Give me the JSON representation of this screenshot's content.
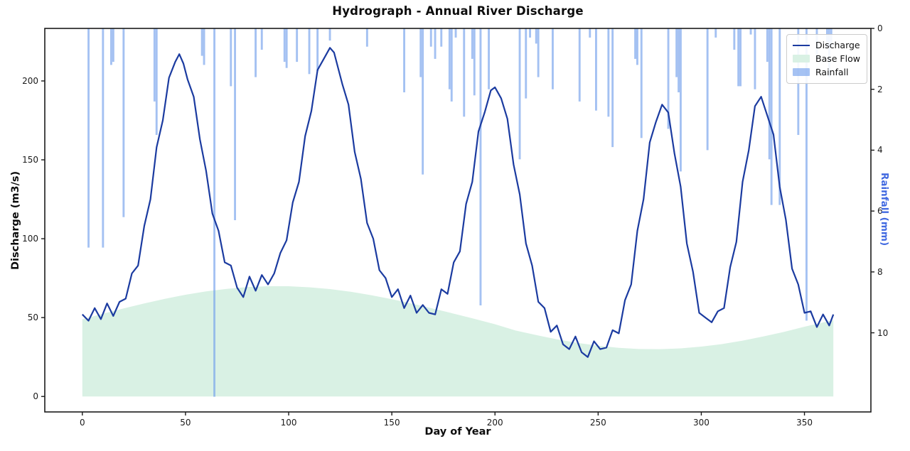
{
  "figure": {
    "title": "Hydrograph - Annual River Discharge"
  },
  "axes": {
    "x": {
      "label": "Day of Year",
      "ticks": [
        0,
        50,
        100,
        150,
        200,
        250,
        300,
        350
      ]
    },
    "y_left": {
      "label": "Discharge (m3/s)",
      "ticks": [
        0,
        50,
        100,
        150,
        200
      ]
    },
    "y_right": {
      "label": "Rainfall (mm)",
      "ticks": [
        0,
        2,
        4,
        6,
        8,
        10
      ],
      "label_color": "#4169e1"
    }
  },
  "legend": {
    "position": "upper-right"
  },
  "colors": {
    "discharge_line": "#1b3ba0",
    "baseflow_fill": "#d9f1e4",
    "rainfall_bar": "#6d9ceb",
    "rainfall_bar_opacity": 0.62,
    "spine": "#1a1a1a",
    "tick_text": "#1a1a1a"
  },
  "chart_data": {
    "type": "line",
    "title": "Hydrograph - Annual River Discharge",
    "xlabel": "Day of Year",
    "ylabel_left": "Discharge (m3/s)",
    "ylabel_right": "Rainfall (mm)",
    "xlim": [
      -18.2,
      382.2
    ],
    "ylim_discharge": [
      -9.8,
      233.3
    ],
    "ylim_rainfall": [
      12.6,
      0
    ],
    "rainfall_axis_inverted": true,
    "grid": false,
    "legend_position": "upper-right",
    "series": [
      {
        "name": "Discharge",
        "type": "line",
        "axis": "left",
        "color": "#1b3ba0",
        "points": [
          [
            0,
            52
          ],
          [
            3,
            48
          ],
          [
            6,
            56
          ],
          [
            9,
            49
          ],
          [
            12,
            59
          ],
          [
            15,
            51
          ],
          [
            18,
            60
          ],
          [
            21,
            62
          ],
          [
            24,
            78
          ],
          [
            27,
            83
          ],
          [
            30,
            108
          ],
          [
            33,
            125
          ],
          [
            36,
            158
          ],
          [
            39,
            175
          ],
          [
            42,
            202
          ],
          [
            45,
            212
          ],
          [
            47,
            217
          ],
          [
            49,
            211
          ],
          [
            51,
            201
          ],
          [
            54,
            190
          ],
          [
            57,
            163
          ],
          [
            60,
            143
          ],
          [
            63,
            116
          ],
          [
            66,
            105
          ],
          [
            69,
            85
          ],
          [
            72,
            83
          ],
          [
            75,
            69
          ],
          [
            78,
            63
          ],
          [
            81,
            76
          ],
          [
            84,
            67
          ],
          [
            87,
            77
          ],
          [
            90,
            71
          ],
          [
            93,
            78
          ],
          [
            96,
            91
          ],
          [
            99,
            99
          ],
          [
            102,
            123
          ],
          [
            105,
            136
          ],
          [
            108,
            165
          ],
          [
            111,
            181
          ],
          [
            114,
            207
          ],
          [
            117,
            214
          ],
          [
            120,
            221
          ],
          [
            122,
            218
          ],
          [
            126,
            198
          ],
          [
            129,
            185
          ],
          [
            132,
            155
          ],
          [
            135,
            138
          ],
          [
            138,
            110
          ],
          [
            141,
            100
          ],
          [
            144,
            80
          ],
          [
            147,
            75
          ],
          [
            150,
            63
          ],
          [
            153,
            68
          ],
          [
            156,
            56
          ],
          [
            159,
            64
          ],
          [
            162,
            53
          ],
          [
            165,
            58
          ],
          [
            168,
            53
          ],
          [
            171,
            52
          ],
          [
            174,
            68
          ],
          [
            177,
            65
          ],
          [
            180,
            85
          ],
          [
            183,
            92
          ],
          [
            186,
            122
          ],
          [
            189,
            136
          ],
          [
            192,
            168
          ],
          [
            195,
            180
          ],
          [
            198,
            194
          ],
          [
            200,
            196
          ],
          [
            203,
            189
          ],
          [
            206,
            176
          ],
          [
            209,
            147
          ],
          [
            212,
            128
          ],
          [
            215,
            97
          ],
          [
            218,
            83
          ],
          [
            221,
            60
          ],
          [
            224,
            56
          ],
          [
            227,
            41
          ],
          [
            230,
            45
          ],
          [
            233,
            33
          ],
          [
            236,
            30
          ],
          [
            239,
            38
          ],
          [
            242,
            28
          ],
          [
            245,
            25
          ],
          [
            248,
            35
          ],
          [
            251,
            30
          ],
          [
            254,
            31
          ],
          [
            257,
            42
          ],
          [
            260,
            40
          ],
          [
            263,
            61
          ],
          [
            266,
            71
          ],
          [
            269,
            105
          ],
          [
            272,
            125
          ],
          [
            275,
            161
          ],
          [
            278,
            174
          ],
          [
            281,
            185
          ],
          [
            284,
            180
          ],
          [
            287,
            154
          ],
          [
            290,
            133
          ],
          [
            293,
            97
          ],
          [
            296,
            79
          ],
          [
            299,
            53
          ],
          [
            302,
            50
          ],
          [
            305,
            47
          ],
          [
            308,
            54
          ],
          [
            311,
            56
          ],
          [
            314,
            82
          ],
          [
            317,
            98
          ],
          [
            320,
            136
          ],
          [
            323,
            156
          ],
          [
            326,
            184
          ],
          [
            329,
            190
          ],
          [
            332,
            178
          ],
          [
            335,
            166
          ],
          [
            338,
            133
          ],
          [
            341,
            112
          ],
          [
            344,
            81
          ],
          [
            347,
            71
          ],
          [
            350,
            53
          ],
          [
            353,
            54
          ],
          [
            356,
            44
          ],
          [
            359,
            52
          ],
          [
            362,
            45
          ],
          [
            364,
            52
          ]
        ]
      },
      {
        "name": "Base Flow",
        "type": "area",
        "axis": "left",
        "color": "#d9f1e4",
        "baseline": 0,
        "points": [
          [
            0,
            49
          ],
          [
            10,
            52.4
          ],
          [
            20,
            55.8
          ],
          [
            30,
            59
          ],
          [
            40,
            61.9
          ],
          [
            50,
            64.5
          ],
          [
            60,
            66.6
          ],
          [
            70,
            68.2
          ],
          [
            80,
            69.4
          ],
          [
            90,
            69.9
          ],
          [
            100,
            69.9
          ],
          [
            110,
            69.2
          ],
          [
            120,
            68.1
          ],
          [
            130,
            66.4
          ],
          [
            140,
            64.2
          ],
          [
            150,
            61.7
          ],
          [
            160,
            58.8
          ],
          [
            170,
            55.7
          ],
          [
            180,
            52.5
          ],
          [
            190,
            49.2
          ],
          [
            200,
            45.8
          ],
          [
            210,
            41.8
          ],
          [
            220,
            38.9
          ],
          [
            230,
            36.2
          ],
          [
            240,
            34
          ],
          [
            250,
            32.2
          ],
          [
            260,
            30.8
          ],
          [
            270,
            30.1
          ],
          [
            280,
            30
          ],
          [
            290,
            30.5
          ],
          [
            300,
            31.6
          ],
          [
            310,
            33.2
          ],
          [
            320,
            35.4
          ],
          [
            330,
            38
          ],
          [
            340,
            40.9
          ],
          [
            350,
            44.2
          ],
          [
            360,
            47.2
          ],
          [
            364,
            48.3
          ]
        ]
      },
      {
        "name": "Rainfall",
        "type": "bar",
        "axis": "right",
        "color": "#6d9ceb",
        "bar_width_days": 1,
        "points": [
          [
            3,
            7.2
          ],
          [
            10,
            7.2
          ],
          [
            14,
            1.2
          ],
          [
            15,
            1.1
          ],
          [
            20,
            6.2
          ],
          [
            35,
            2.4
          ],
          [
            36,
            3.5
          ],
          [
            58,
            0.9
          ],
          [
            59,
            1.2
          ],
          [
            64,
            12.1
          ],
          [
            72,
            1.9
          ],
          [
            74,
            6.3
          ],
          [
            84,
            1.6
          ],
          [
            87,
            0.7
          ],
          [
            98,
            1.1
          ],
          [
            99,
            1.3
          ],
          [
            104,
            1.1
          ],
          [
            110,
            1.5
          ],
          [
            114,
            1.4
          ],
          [
            120,
            0.4
          ],
          [
            138,
            0.6
          ],
          [
            156,
            2.1
          ],
          [
            164,
            1.6
          ],
          [
            165,
            4.8
          ],
          [
            169,
            0.6
          ],
          [
            171,
            1.0
          ],
          [
            174,
            0.6
          ],
          [
            178,
            2.0
          ],
          [
            179,
            2.4
          ],
          [
            181,
            0.3
          ],
          [
            185,
            2.9
          ],
          [
            189,
            1.0
          ],
          [
            190,
            2.2
          ],
          [
            193,
            9.1
          ],
          [
            197,
            2.0
          ],
          [
            212,
            4.3
          ],
          [
            215,
            2.3
          ],
          [
            217,
            0.3
          ],
          [
            220,
            0.5
          ],
          [
            221,
            1.6
          ],
          [
            228,
            2.0
          ],
          [
            241,
            2.4
          ],
          [
            246,
            0.3
          ],
          [
            249,
            2.7
          ],
          [
            255,
            2.9
          ],
          [
            257,
            3.9
          ],
          [
            268,
            1.0
          ],
          [
            269,
            1.2
          ],
          [
            271,
            3.6
          ],
          [
            284,
            3.3
          ],
          [
            288,
            1.6
          ],
          [
            289,
            2.1
          ],
          [
            290,
            4.7
          ],
          [
            303,
            4.0
          ],
          [
            307,
            0.3
          ],
          [
            316,
            0.7
          ],
          [
            318,
            1.9
          ],
          [
            319,
            1.9
          ],
          [
            324,
            0.2
          ],
          [
            326,
            2.0
          ],
          [
            332,
            1.1
          ],
          [
            333,
            4.3
          ],
          [
            334,
            5.8
          ],
          [
            338,
            5.8
          ],
          [
            347,
            3.5
          ],
          [
            351,
            9.6
          ],
          [
            356,
            1.0
          ],
          [
            361,
            0.6
          ],
          [
            362,
            1.6
          ],
          [
            363,
            0.6
          ]
        ]
      }
    ]
  }
}
